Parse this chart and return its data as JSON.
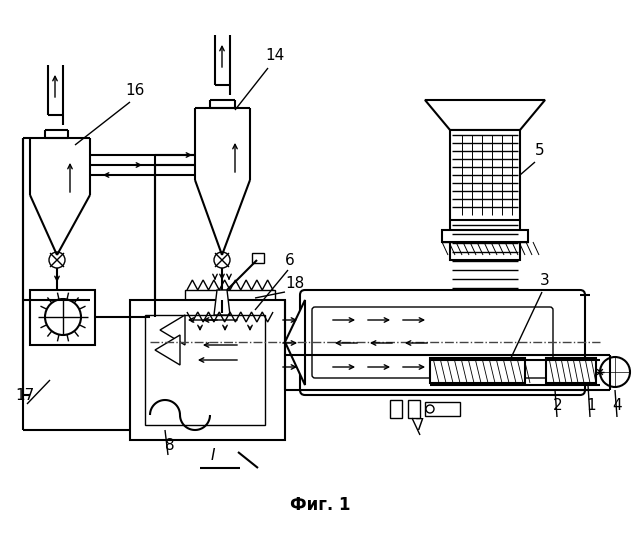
{
  "title": "Фиг. 1",
  "background_color": "#ffffff",
  "line_color": "#000000",
  "figsize": [
    6.4,
    5.33
  ],
  "dpi": 100
}
